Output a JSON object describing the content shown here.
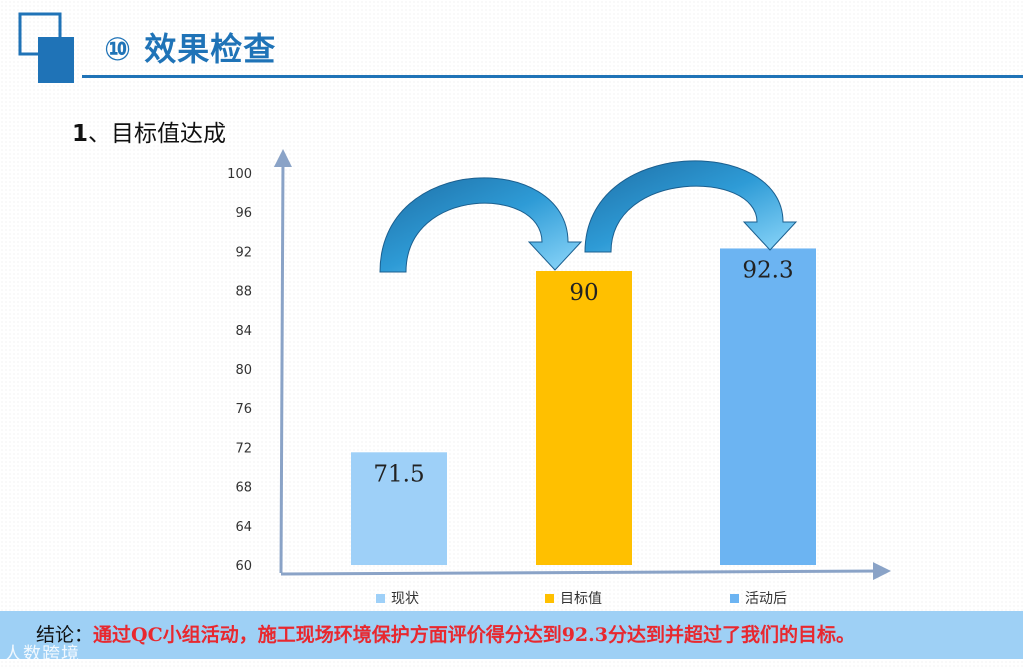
{
  "header": {
    "title": "⑩ 效果检查"
  },
  "section": {
    "number": "1",
    "separator": "、",
    "title": "目标值达成"
  },
  "chart_data": {
    "type": "bar",
    "categories": [
      "现状",
      "目标值",
      "活动后"
    ],
    "values": [
      71.5,
      90,
      92.3
    ],
    "value_labels": [
      "71.5",
      "90",
      "92.3"
    ],
    "colors": [
      "#9ed0f8",
      "#ffc000",
      "#6cb4f2"
    ],
    "ylim": [
      60,
      100
    ],
    "yticks": [
      60,
      64,
      68,
      72,
      76,
      80,
      84,
      88,
      92,
      96,
      100
    ],
    "legend": {
      "position": "bottom",
      "entries": [
        "现状",
        "目标值",
        "活动后"
      ]
    },
    "grid": false,
    "annotations": [
      "curved arrow from 现状 to 目标值",
      "curved arrow from 目标值 to 活动后"
    ]
  },
  "conclusion": {
    "label": "结论：",
    "text": "通过QC小组活动，施工现场环境保护方面评价得分达到92.3分达到并超过了我们的目标。"
  },
  "watermark": "人数跨境"
}
